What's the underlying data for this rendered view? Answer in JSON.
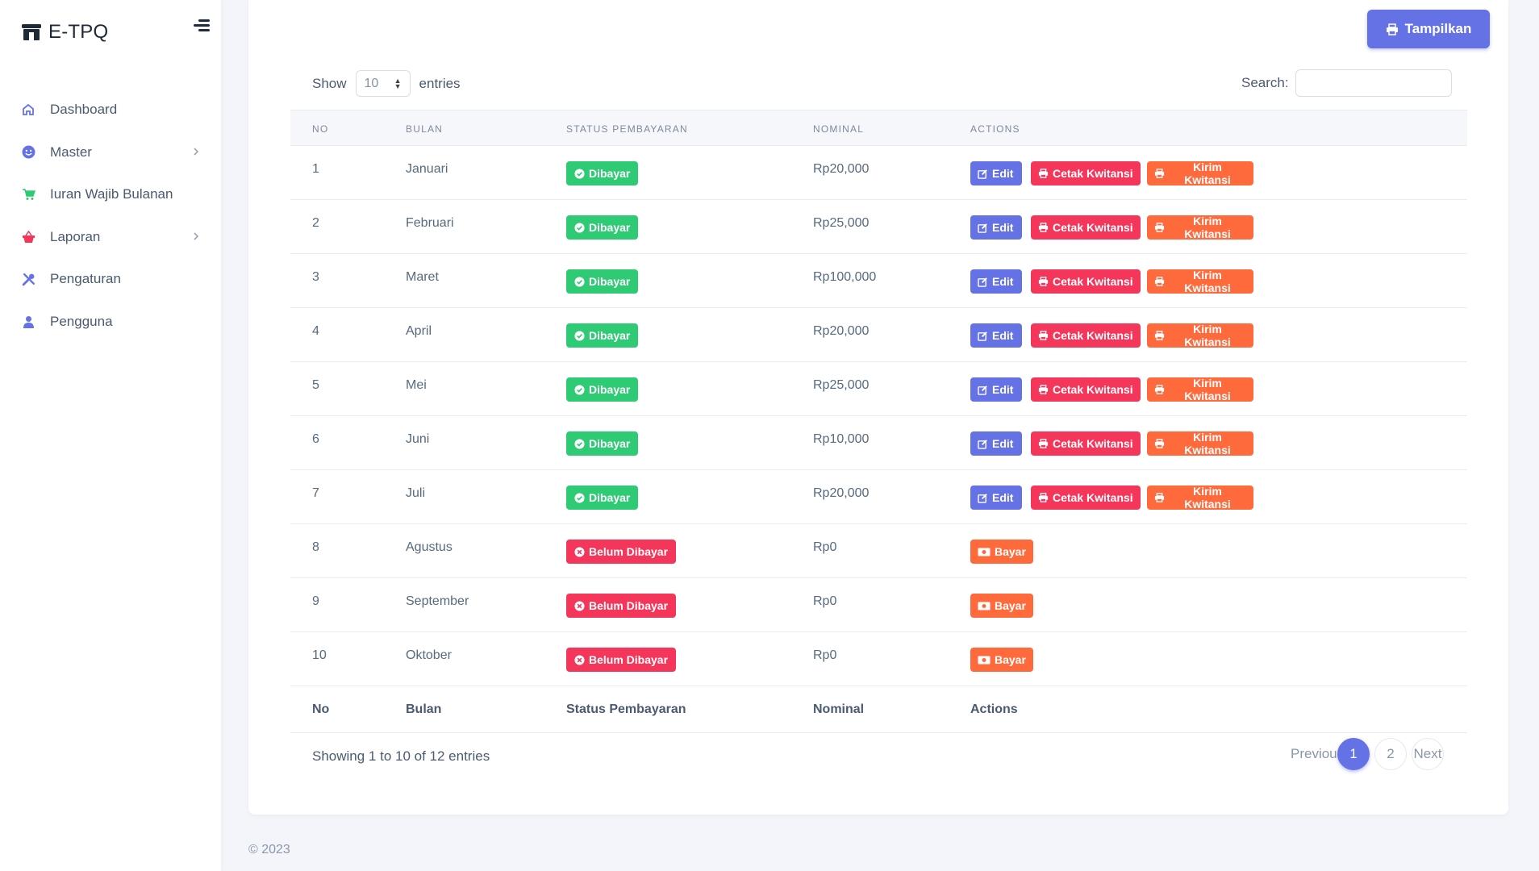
{
  "brand": {
    "name": "E-TPQ",
    "icon": "store-icon"
  },
  "sidebar": {
    "items": [
      {
        "label": "Dashboard",
        "icon": "home-icon",
        "color": "#6572e6",
        "has_submenu": false
      },
      {
        "label": "Master",
        "icon": "smile-icon",
        "color": "#6572e6",
        "has_submenu": true
      },
      {
        "label": "Iuran Wajib Bulanan",
        "icon": "cart-icon",
        "color": "#2fcb74",
        "has_submenu": false
      },
      {
        "label": "Laporan",
        "icon": "basket-icon",
        "color": "#f4365a",
        "has_submenu": true
      },
      {
        "label": "Pengaturan",
        "icon": "tools-icon",
        "color": "#6572e6",
        "has_submenu": false
      },
      {
        "label": "Pengguna",
        "icon": "user-icon",
        "color": "#6572e6",
        "has_submenu": false
      }
    ]
  },
  "toolbar": {
    "tampilkan_label": "Tampilkan"
  },
  "length": {
    "show_label": "Show",
    "value": "10",
    "entries_label": "entries"
  },
  "search": {
    "label": "Search:",
    "value": "",
    "placeholder": ""
  },
  "table": {
    "headers": [
      "No",
      "Bulan",
      "Status Pembayaran",
      "Nominal",
      "Actions"
    ],
    "rows": [
      {
        "no": "1",
        "bulan": "Januari",
        "status": "Dibayar",
        "paid": true,
        "nominal": "Rp20,000"
      },
      {
        "no": "2",
        "bulan": "Februari",
        "status": "Dibayar",
        "paid": true,
        "nominal": "Rp25,000"
      },
      {
        "no": "3",
        "bulan": "Maret",
        "status": "Dibayar",
        "paid": true,
        "nominal": "Rp100,000"
      },
      {
        "no": "4",
        "bulan": "April",
        "status": "Dibayar",
        "paid": true,
        "nominal": "Rp20,000"
      },
      {
        "no": "5",
        "bulan": "Mei",
        "status": "Dibayar",
        "paid": true,
        "nominal": "Rp25,000"
      },
      {
        "no": "6",
        "bulan": "Juni",
        "status": "Dibayar",
        "paid": true,
        "nominal": "Rp10,000"
      },
      {
        "no": "7",
        "bulan": "Juli",
        "status": "Dibayar",
        "paid": true,
        "nominal": "Rp20,000"
      },
      {
        "no": "8",
        "bulan": "Agustus",
        "status": "Belum Dibayar",
        "paid": false,
        "nominal": "Rp0"
      },
      {
        "no": "9",
        "bulan": "September",
        "status": "Belum Dibayar",
        "paid": false,
        "nominal": "Rp0"
      },
      {
        "no": "10",
        "bulan": "Oktober",
        "status": "Belum Dibayar",
        "paid": false,
        "nominal": "Rp0"
      }
    ],
    "actions": {
      "edit": "Edit",
      "cetak": "Cetak Kwitansi",
      "kirim": "Kirim Kwitansi",
      "bayar": "Bayar"
    }
  },
  "info": "Showing 1 to 10 of 12 entries",
  "pagination": {
    "previous": "Previous",
    "pages": [
      "1",
      "2"
    ],
    "active": "1",
    "next": "Next"
  },
  "footer": "© 2023",
  "colors": {
    "primary": "#6572e6",
    "success": "#2fcb74",
    "danger": "#f4365a",
    "warning": "#ff6a3d"
  }
}
